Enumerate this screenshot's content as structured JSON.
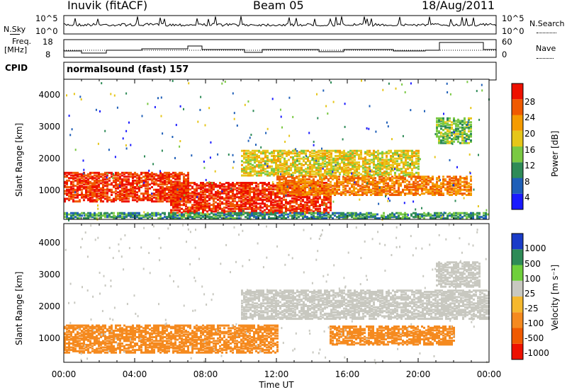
{
  "header": {
    "station": "Inuvik (fitACF)",
    "beam": "Beam 05",
    "date": "18/Aug/2011"
  },
  "panels": {
    "nsky_label": "N.Sky",
    "nsky_ticks": [
      "10^5",
      "10^0"
    ],
    "nsearch_label": "N.Search",
    "nsearch_ticks": [
      "10^5",
      "10^0"
    ],
    "freq_label": "Freq.",
    "freq_unit": "[MHz]",
    "freq_ticks": [
      "18",
      "8"
    ],
    "nave_label": "Nave",
    "nave_ticks": [
      "60",
      "0"
    ],
    "cpid_label": "CPID",
    "cpid_value": "normalsound (fast) 157"
  },
  "chart_data": [
    {
      "type": "heatmap",
      "title": "",
      "xlabel": "Time UT",
      "ylabel": "Slant Range [km]",
      "x_ticks": [
        "00:00",
        "04:00",
        "08:00",
        "12:00",
        "16:00",
        "20:00",
        "00:00"
      ],
      "y_ticks": [
        "1000",
        "2000",
        "3000",
        "4000"
      ],
      "xlim": [
        0,
        24
      ],
      "ylim": [
        180,
        4500
      ],
      "colorbar": {
        "label": "Power [dB]",
        "ticks": [
          "4",
          "8",
          "12",
          "16",
          "20",
          "24",
          "28"
        ],
        "range": [
          0,
          32
        ],
        "colors": [
          "#1a1aff",
          "#1f5fb8",
          "#2e8b57",
          "#7ac943",
          "#e6c619",
          "#f59b00",
          "#f05a00",
          "#ee1100"
        ]
      },
      "regions": [
        {
          "t0": 0,
          "t1": 7,
          "r0": 700,
          "r1": 1600,
          "value": 28
        },
        {
          "t0": 6,
          "t1": 15,
          "r0": 350,
          "r1": 1300,
          "value": 29
        },
        {
          "t0": 10,
          "t1": 20,
          "r0": 1500,
          "r1": 2300,
          "value": 18
        },
        {
          "t0": 12,
          "t1": 23,
          "r0": 900,
          "r1": 1500,
          "value": 24
        },
        {
          "t0": 21,
          "t1": 23,
          "r0": 2500,
          "r1": 3300,
          "value": 14
        },
        {
          "t0": 0,
          "t1": 24,
          "r0": 180,
          "r1": 350,
          "value": 10
        }
      ]
    },
    {
      "type": "heatmap",
      "title": "",
      "xlabel": "Time UT",
      "ylabel": "Slant Range [km]",
      "x_ticks": [
        "00:00",
        "04:00",
        "08:00",
        "12:00",
        "16:00",
        "20:00",
        "00:00"
      ],
      "y_ticks": [
        "1000",
        "2000",
        "3000",
        "4000"
      ],
      "xlim": [
        0,
        24
      ],
      "ylim": [
        180,
        4500
      ],
      "colorbar": {
        "label": "Velocity [m s⁻¹]",
        "ticks": [
          "1000",
          "500",
          "100",
          "25",
          "-25",
          "-100",
          "-500",
          "-1000"
        ],
        "colors": [
          "#1a3cc8",
          "#2e8b57",
          "#6fcf3c",
          "#c8c8c0",
          "#f5b82e",
          "#f58a1f",
          "#f05a00",
          "#ee1100"
        ]
      },
      "regions": [
        {
          "t0": 0,
          "t1": 12,
          "r0": 450,
          "r1": 1300,
          "value": -100
        },
        {
          "t0": 10,
          "t1": 24,
          "r0": 1500,
          "r1": 2400,
          "value": 0
        },
        {
          "t0": 15,
          "t1": 22,
          "r0": 700,
          "r1": 1300,
          "value": -100
        },
        {
          "t0": 21,
          "t1": 23.5,
          "r0": 2500,
          "r1": 3300,
          "value": 0
        }
      ]
    }
  ]
}
